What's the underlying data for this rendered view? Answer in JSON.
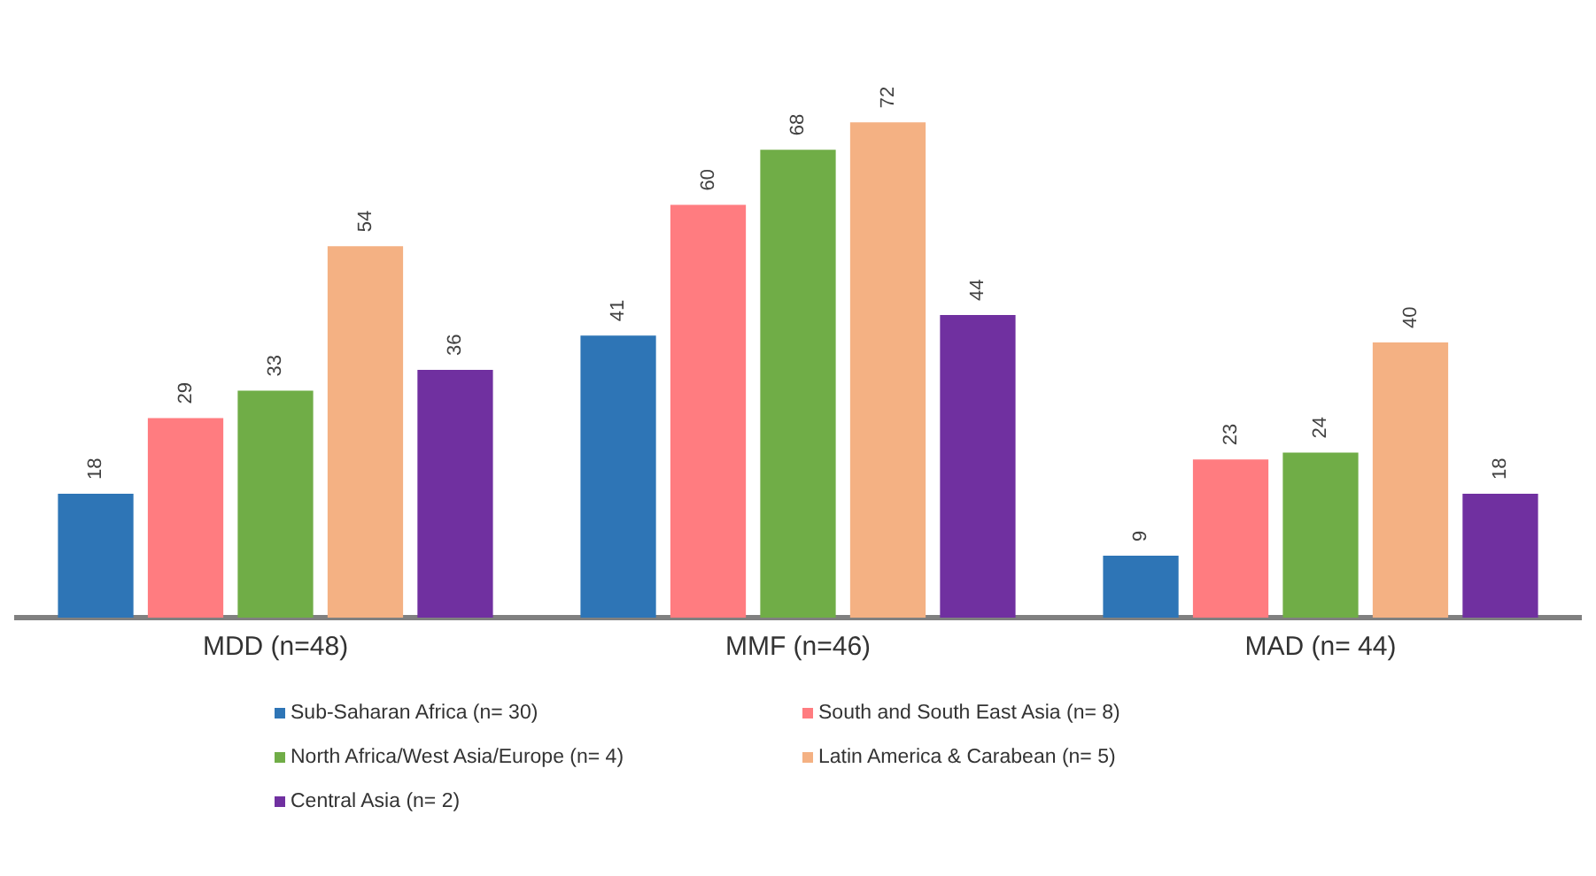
{
  "chart_data": {
    "type": "bar",
    "categories": [
      "MDD (n=48)",
      "MMF (n=46)",
      "MAD (n= 44)"
    ],
    "series": [
      {
        "name": "Sub-Saharan Africa (n= 30)",
        "color": "#2e75b6",
        "values": [
          18,
          41,
          9
        ]
      },
      {
        "name": "South and South East Asia (n= 8)",
        "color": "#ff7c80",
        "values": [
          29,
          60,
          23
        ]
      },
      {
        "name": "North Africa/West Asia/Europe (n= 4)",
        "color": "#70ad47",
        "values": [
          33,
          68,
          24
        ]
      },
      {
        "name": "Latin America & Carabean (n= 5)",
        "color": "#f4b183",
        "values": [
          54,
          72,
          40
        ]
      },
      {
        "name": "Central Asia (n= 2)",
        "color": "#7030a0",
        "values": [
          36,
          44,
          18
        ]
      }
    ],
    "data_labels": true,
    "legend": "bottom",
    "grid": false
  }
}
